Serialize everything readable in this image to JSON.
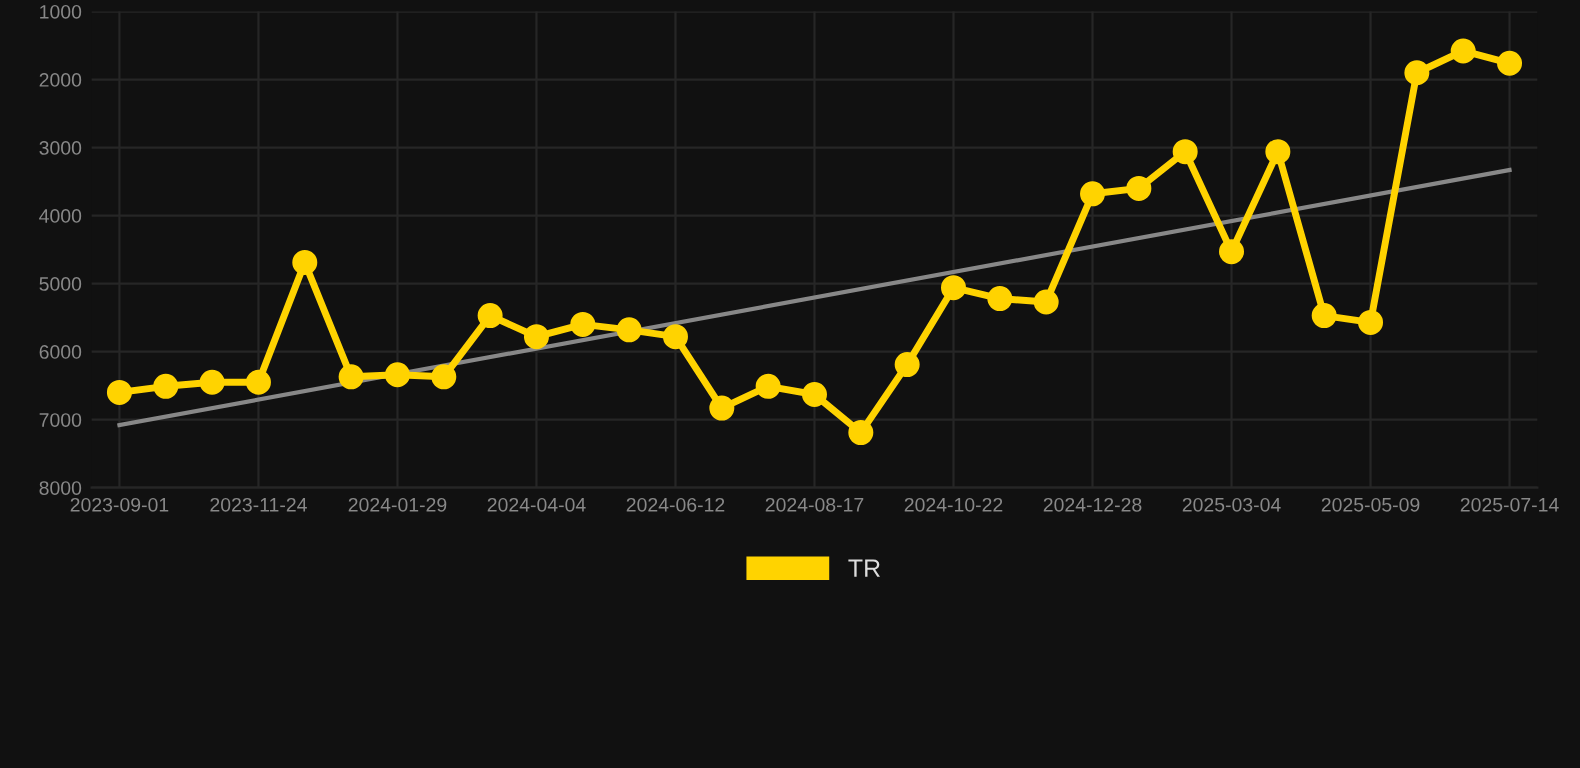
{
  "chart_data": {
    "type": "line",
    "categories": [
      "2023-09-01",
      null,
      null,
      "2023-11-24",
      null,
      null,
      "2024-01-29",
      null,
      null,
      "2024-04-04",
      null,
      null,
      "2024-06-12",
      null,
      null,
      "2024-08-17",
      null,
      null,
      "2024-10-22",
      null,
      null,
      "2024-12-28",
      null,
      null,
      "2025-03-04",
      null,
      null,
      "2025-05-09",
      null,
      null,
      "2025-07-14"
    ],
    "series": [
      {
        "name": "TR",
        "color": "#ffd300",
        "marker": "circle",
        "values": [
          6600,
          6510,
          6450,
          6450,
          4690,
          6370,
          6340,
          6370,
          5470,
          5780,
          5600,
          5680,
          5780,
          6830,
          6510,
          6630,
          7190,
          6190,
          5060,
          5220,
          5270,
          3680,
          3600,
          3060,
          4530,
          3060,
          5470,
          5570,
          1900,
          1580,
          1760
        ]
      },
      {
        "type": "line",
        "color": "#888888",
        "marker": "none",
        "values": [
          7080,
          null,
          null,
          null,
          null,
          null,
          null,
          null,
          null,
          null,
          null,
          null,
          null,
          null,
          null,
          null,
          null,
          null,
          null,
          null,
          null,
          null,
          null,
          null,
          null,
          null,
          null,
          null,
          null,
          null,
          3330
        ]
      }
    ],
    "ylim": [
      8000,
      1000
    ],
    "yticks": [
      1000,
      2000,
      3000,
      4000,
      5000,
      6000,
      7000,
      8000
    ],
    "grid": true,
    "legend": "bottom"
  }
}
